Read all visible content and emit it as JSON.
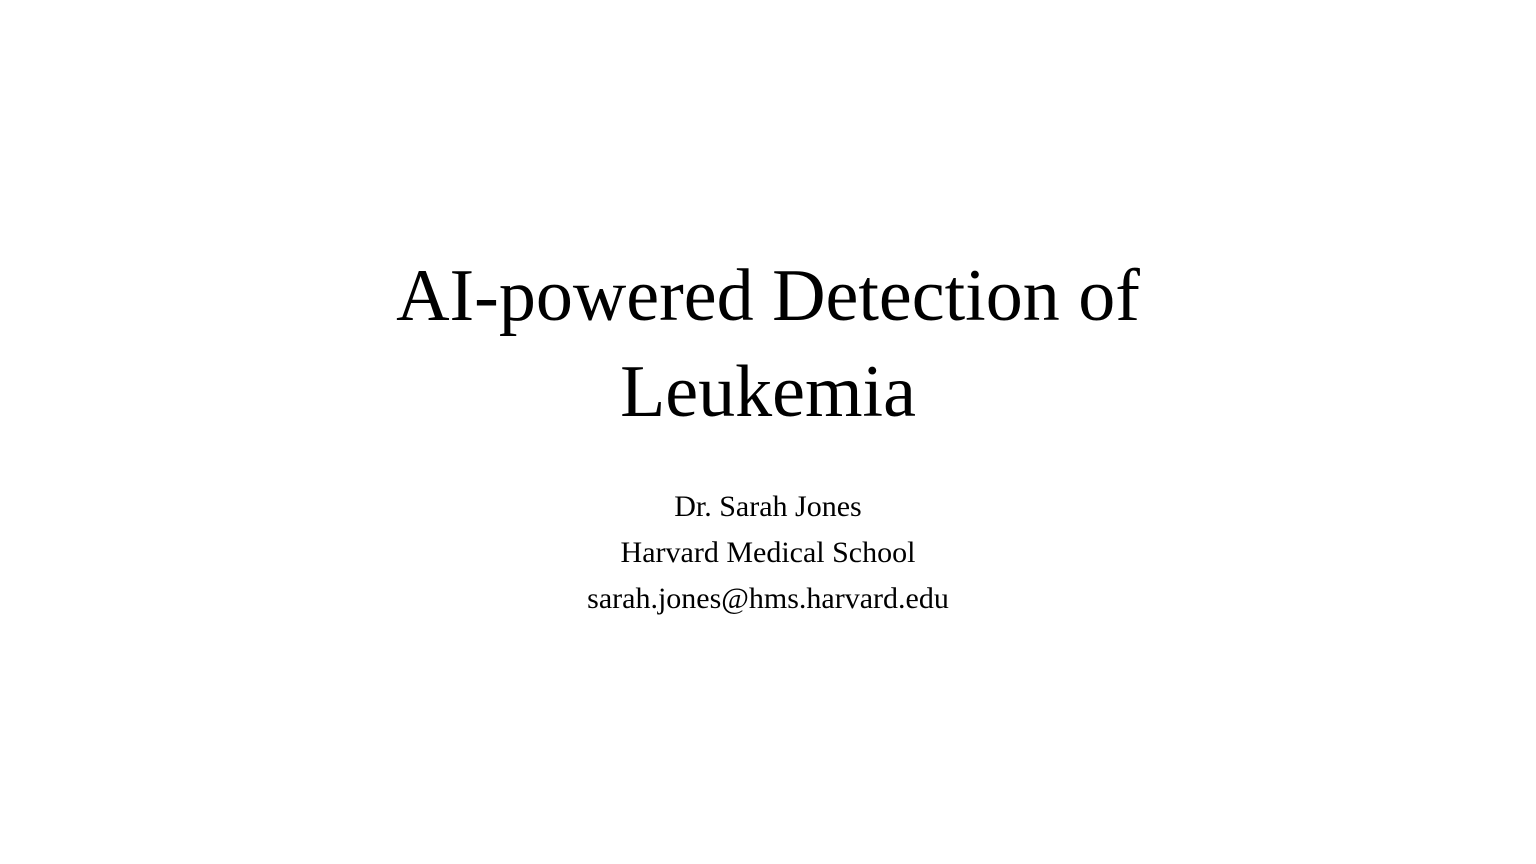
{
  "slide": {
    "title_lines": [
      "AI-powered Detection of",
      "Leukemia"
    ],
    "author": "Dr. Sarah Jones",
    "institution": "Harvard Medical School",
    "email": "sarah.jones@hms.harvard.edu"
  },
  "colors": {
    "background": "#ffffff",
    "text": "#000000"
  }
}
